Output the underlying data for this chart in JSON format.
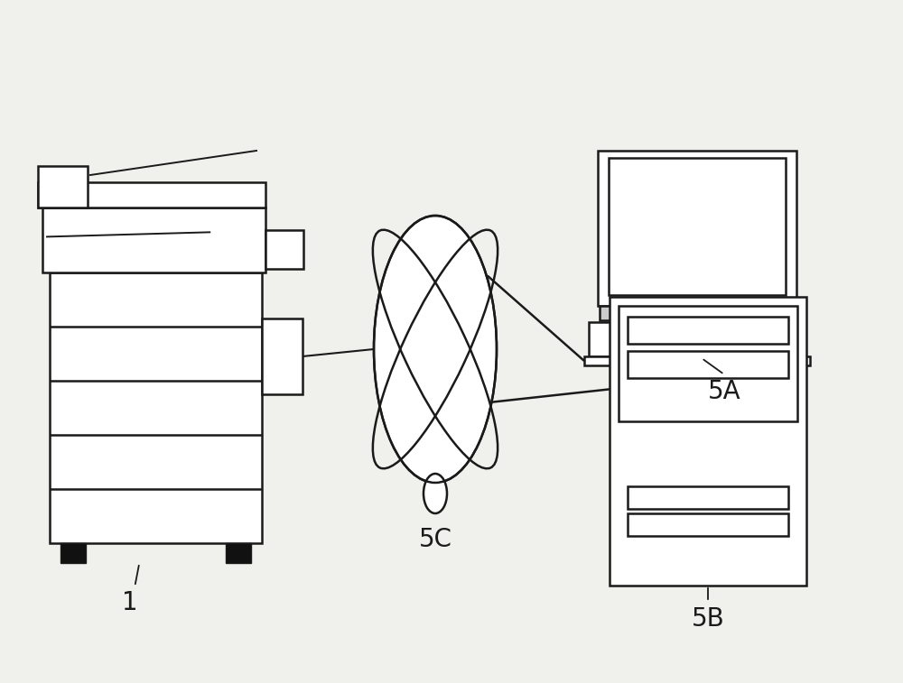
{
  "bg_color": "#f0f0ec",
  "line_color": "#1a1a1a",
  "label_1": "1",
  "label_5A": "5A",
  "label_5B": "5B",
  "label_5C": "5C",
  "label_fontsize": 20,
  "fig_width": 10.0,
  "fig_height": 7.57,
  "dpi": 100
}
